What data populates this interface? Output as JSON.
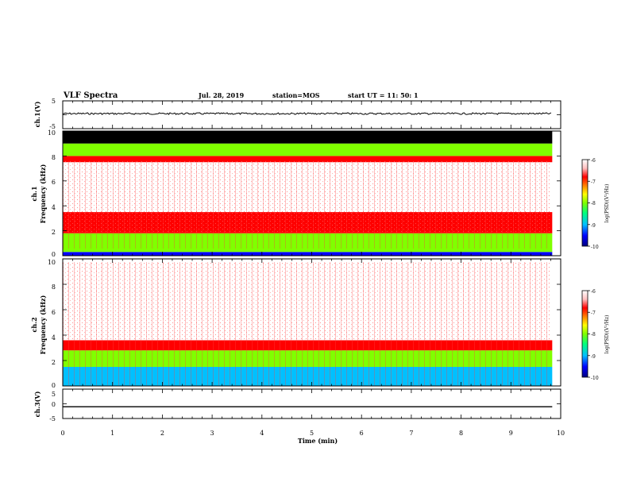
{
  "header": {
    "title": "VLF Spectra",
    "date": "Jul. 28, 2019",
    "station": "station=MOS",
    "start_time": "start UT =  11: 50: 1"
  },
  "colors": {
    "background": "#ffffff",
    "axes": "#000000",
    "colormap": [
      "#000080",
      "#0000ff",
      "#00c0ff",
      "#00ff80",
      "#80ff00",
      "#ffff00",
      "#ff8000",
      "#ff0000",
      "#ffc0c0",
      "#ffffff"
    ]
  },
  "chart_data": [
    {
      "panel": "ch.1 voltage",
      "type": "line",
      "ylabel": "ch.1(V)",
      "ylim": [
        -5,
        5
      ],
      "yticks": [
        "5",
        "-5"
      ],
      "xlim": [
        0,
        10
      ],
      "x_min": [
        0,
        9.83
      ],
      "series": [
        {
          "values_v": [
            0.4,
            0.4
          ]
        }
      ]
    },
    {
      "panel": "ch.1 spectrogram",
      "type": "heatmap",
      "ylabel_top": "ch.1",
      "ylabel": "Frequency (kHz)",
      "ylim": [
        0,
        10
      ],
      "yticks": [
        "0",
        "2",
        "4",
        "6",
        "8",
        "10"
      ],
      "xlim": [
        0,
        10
      ],
      "data_end_min": 9.83,
      "colorbar": {
        "label": "log(PSD)(V²/Hz)",
        "range": [
          -10,
          -6
        ],
        "ticks": [
          "-6",
          "-7",
          "-8",
          "-9",
          "-10"
        ]
      },
      "bands_khz": [
        {
          "from": 0.0,
          "to": 0.3,
          "log_psd": -9.5
        },
        {
          "from": 0.3,
          "to": 1.8,
          "log_psd": -8.2
        },
        {
          "from": 1.8,
          "to": 3.5,
          "log_psd": -7.0
        },
        {
          "from": 3.5,
          "to": 7.5,
          "log_psd": -6.2
        },
        {
          "from": 7.5,
          "to": 8.0,
          "log_psd": -7.0
        },
        {
          "from": 8.0,
          "to": 9.0,
          "log_psd": -8.2
        },
        {
          "from": 9.0,
          "to": 10.0,
          "log_psd": -10.5
        }
      ]
    },
    {
      "panel": "ch.2 spectrogram",
      "type": "heatmap",
      "ylabel_top": "ch.2",
      "ylabel": "Frequency (kHz)",
      "ylim": [
        0,
        10
      ],
      "yticks": [
        "0",
        "2",
        "4",
        "6",
        "8",
        "10"
      ],
      "xlim": [
        0,
        10
      ],
      "data_end_min": 9.83,
      "colorbar": {
        "label": "log(PSD)(V²/Hz)",
        "range": [
          -10,
          -6
        ],
        "ticks": [
          "-6",
          "-7",
          "-8",
          "-9",
          "-10"
        ]
      },
      "bands_khz": [
        {
          "from": 0.0,
          "to": 1.5,
          "log_psd": -9.3
        },
        {
          "from": 1.5,
          "to": 2.8,
          "log_psd": -8.3
        },
        {
          "from": 2.8,
          "to": 3.6,
          "log_psd": -7.0
        },
        {
          "from": 3.6,
          "to": 10.0,
          "log_psd": -6.0
        }
      ]
    },
    {
      "panel": "ch.3 voltage",
      "type": "line",
      "ylabel": "ch.3(V)",
      "ylim": [
        -5,
        5
      ],
      "yticks": [
        "5",
        "0",
        "-5"
      ],
      "xlim": [
        0,
        10
      ],
      "xlabel": "Time (min)",
      "xticks": [
        "0",
        "1",
        "2",
        "3",
        "4",
        "5",
        "6",
        "7",
        "8",
        "9",
        "10"
      ],
      "x_min": [
        0,
        9.83
      ],
      "series": [
        {
          "values_v": [
            -1.0,
            -1.0
          ]
        }
      ]
    }
  ]
}
